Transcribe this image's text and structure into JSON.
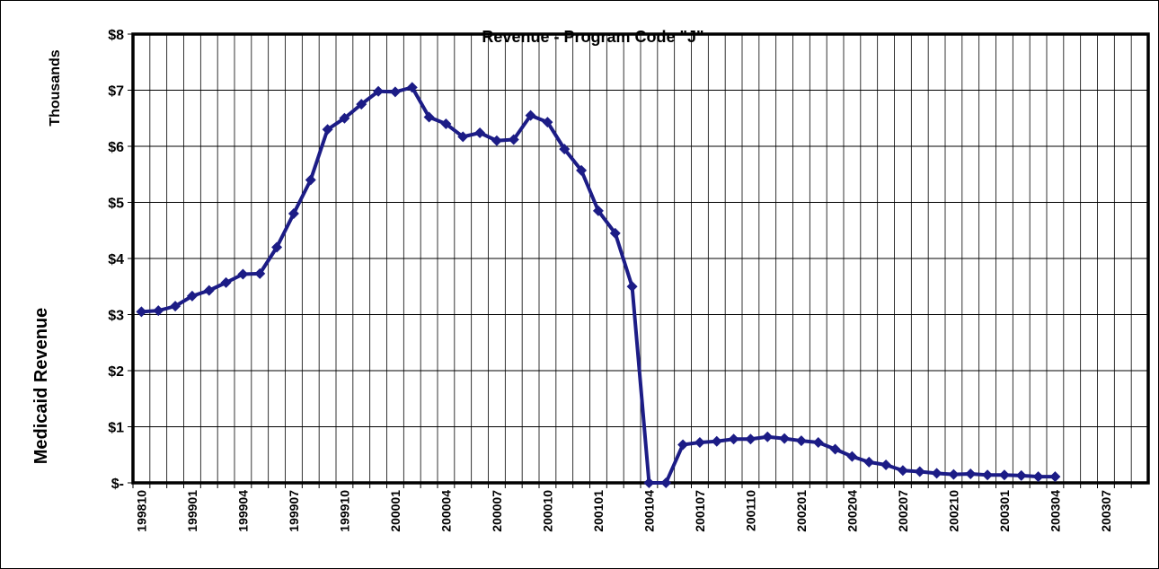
{
  "chart_data": {
    "type": "line",
    "title": "Revenue - Program Code \"J\"",
    "y_label": "Medicaid Revenue",
    "y_unit_label": "Thousands",
    "categories": [
      "199810",
      null,
      null,
      "199901",
      null,
      null,
      "199904",
      null,
      null,
      "199907",
      null,
      null,
      "199910",
      null,
      null,
      "200001",
      null,
      null,
      "200004",
      null,
      null,
      "200007",
      null,
      null,
      "200010",
      null,
      null,
      "200101",
      null,
      null,
      "200104",
      null,
      null,
      "200107",
      null,
      null,
      "200110",
      null,
      null,
      "200201",
      null,
      null,
      "200204",
      null,
      null,
      "200207",
      null,
      null,
      "200210",
      null,
      null,
      "200301",
      null,
      null,
      "200304",
      null,
      null,
      "200307",
      null,
      null
    ],
    "series": [
      {
        "name": "Revenue",
        "color": "#1c1c86",
        "values": [
          3.05,
          3.07,
          3.15,
          3.33,
          3.43,
          3.57,
          3.72,
          3.73,
          4.2,
          4.8,
          5.4,
          6.3,
          6.5,
          6.75,
          6.98,
          6.97,
          7.05,
          6.52,
          6.4,
          6.17,
          6.24,
          6.1,
          6.12,
          6.55,
          6.43,
          5.95,
          5.57,
          4.85,
          4.45,
          3.5,
          0,
          0,
          0.68,
          0.72,
          0.74,
          0.78,
          0.78,
          0.82,
          0.79,
          0.75,
          0.72,
          0.6,
          0.47,
          0.37,
          0.32,
          0.22,
          0.2,
          0.17,
          0.15,
          0.16,
          0.14,
          0.14,
          0.13,
          0.11,
          0.11,
          null,
          null,
          null,
          null,
          null
        ]
      }
    ],
    "ylim": [
      0,
      8
    ],
    "yticks": [
      {
        "value": 0,
        "label": "$-"
      },
      {
        "value": 1,
        "label": "$1"
      },
      {
        "value": 2,
        "label": "$2"
      },
      {
        "value": 3,
        "label": "$3"
      },
      {
        "value": 4,
        "label": "$4"
      },
      {
        "value": 5,
        "label": "$5"
      },
      {
        "value": 6,
        "label": "$6"
      },
      {
        "value": 7,
        "label": "$7"
      },
      {
        "value": 8,
        "label": "$8"
      }
    ],
    "grid": true
  }
}
